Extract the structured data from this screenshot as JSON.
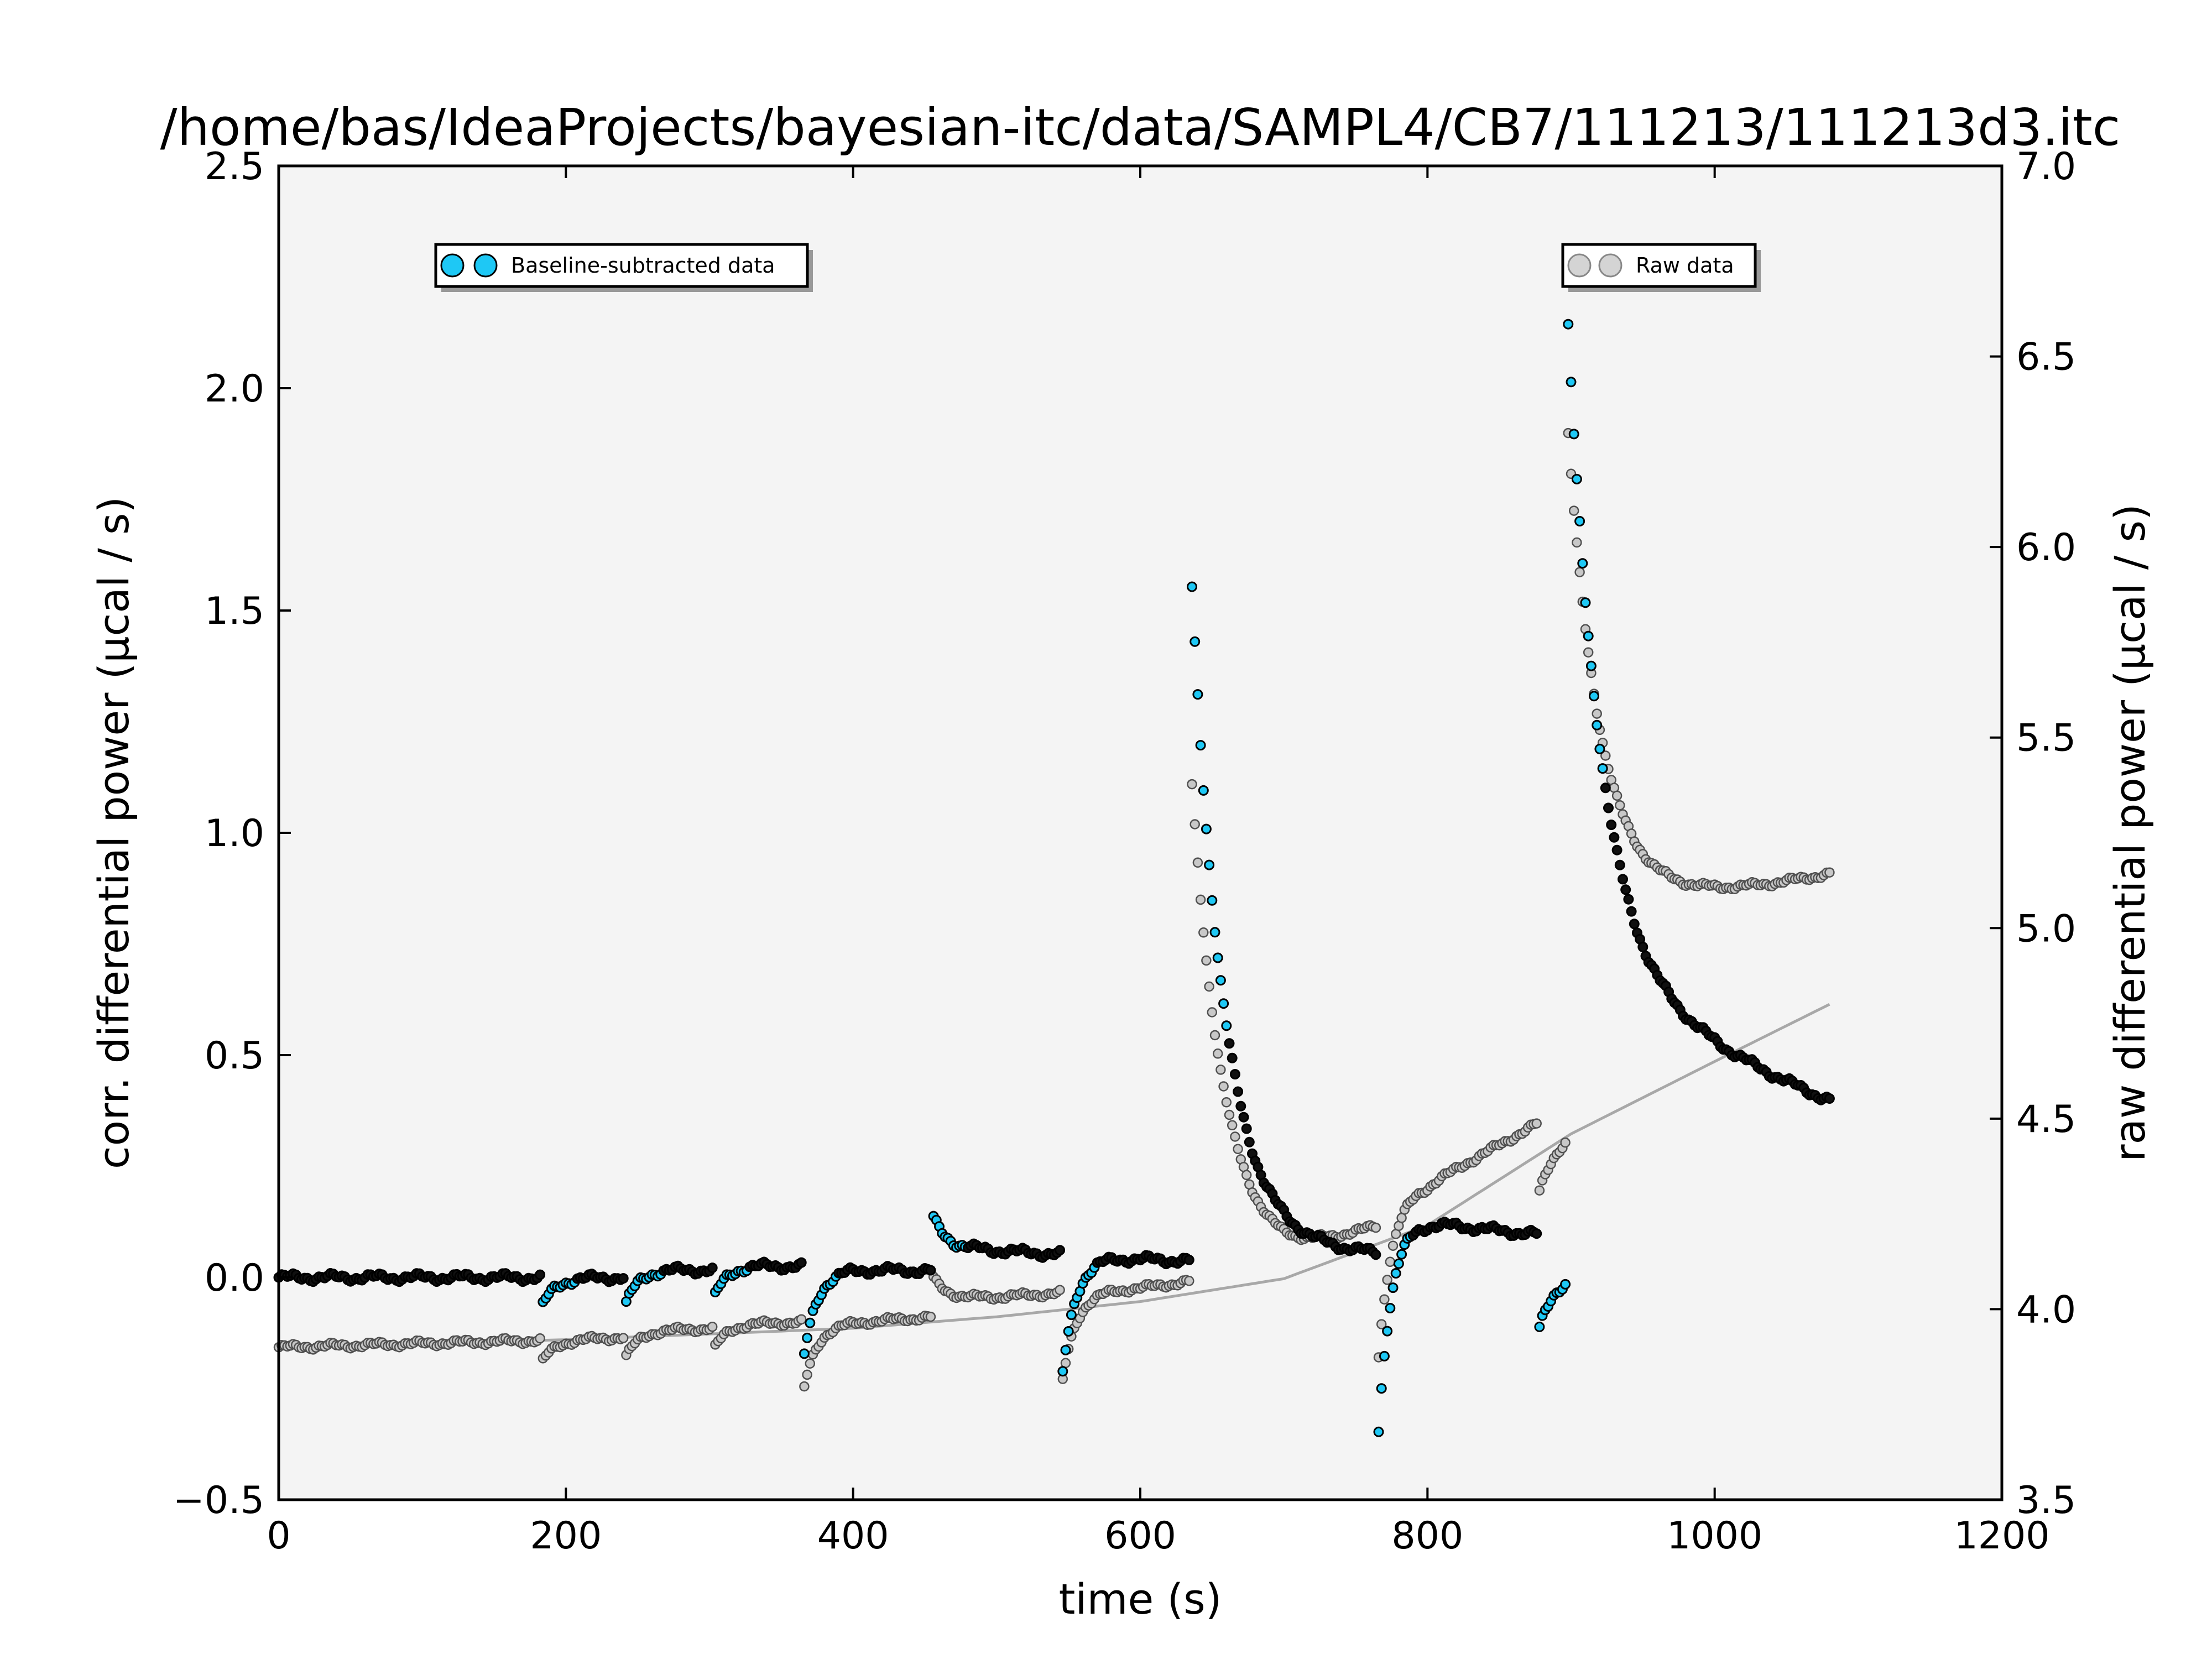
{
  "chart_data": {
    "type": "scatter",
    "title": "/home/bas/IdeaProjects/bayesian-itc/data/SAMPL4/CB7/111213/111213d3.itc",
    "xlabel": "time (s)",
    "ylabel_left": "corr. differential power (μcal / s)",
    "ylabel_right": "raw differential power (μcal / s)",
    "xlim": [
      0,
      1200
    ],
    "ylim_left": [
      -0.5,
      2.5
    ],
    "ylim_right": [
      3.5,
      7.0
    ],
    "xticks": [
      "0",
      "200",
      "400",
      "600",
      "800",
      "1000",
      "1200"
    ],
    "yticks_left": [
      "−0.5",
      "0.0",
      "0.5",
      "1.0",
      "1.5",
      "2.0",
      "2.5"
    ],
    "yticks_right": [
      "3.5",
      "4.0",
      "4.5",
      "5.0",
      "5.5",
      "6.0",
      "6.5",
      "7.0"
    ],
    "grid": false,
    "legend_left": {
      "placement": "upper-left",
      "label": "Baseline-subtracted data"
    },
    "legend_right": {
      "placement": "upper-right",
      "label": "Raw data"
    },
    "colors": {
      "corrected": "#1ec8f5",
      "raw": "#c8c8c8",
      "baseline": "#a8a8a8",
      "plot_bg": "#f4f4f4"
    },
    "injections": [
      {
        "t": 183,
        "peak": -0.07,
        "recovery": 0.0,
        "raw_base": 3.94
      },
      {
        "t": 242,
        "peak": -0.06,
        "recovery": 0.02,
        "raw_base": 3.95
      },
      {
        "t": 303,
        "peak": -0.05,
        "recovery": 0.03,
        "raw_base": 3.96
      },
      {
        "t": 365,
        "peak": -0.2,
        "recovery": 0.02,
        "raw_base": 3.96
      },
      {
        "t": 455,
        "peak": 0.14,
        "recovery": 0.07,
        "raw_base": 3.97
      },
      {
        "t": 545,
        "peak": -0.25,
        "recovery": 0.05,
        "raw_base": 4.0
      },
      {
        "t": 636,
        "peak": 1.55,
        "recovery": 0.08,
        "raw_base": 4.04
      },
      {
        "t": 765,
        "peak": -0.4,
        "recovery": 0.14,
        "raw_base": 4.2
      },
      {
        "t": 877,
        "peak": -0.13,
        "recovery": 0.0,
        "raw_base": 4.5
      },
      {
        "t": 898,
        "peak": 2.14,
        "recovery": 0.73,
        "raw_base": 4.6
      }
    ],
    "raw_baseline_curve": {
      "x": [
        0,
        200,
        400,
        500,
        600,
        700,
        800,
        900,
        1000,
        1080
      ],
      "y": [
        3.9,
        3.92,
        3.95,
        3.98,
        4.02,
        4.08,
        4.22,
        4.46,
        4.65,
        4.8
      ]
    }
  }
}
